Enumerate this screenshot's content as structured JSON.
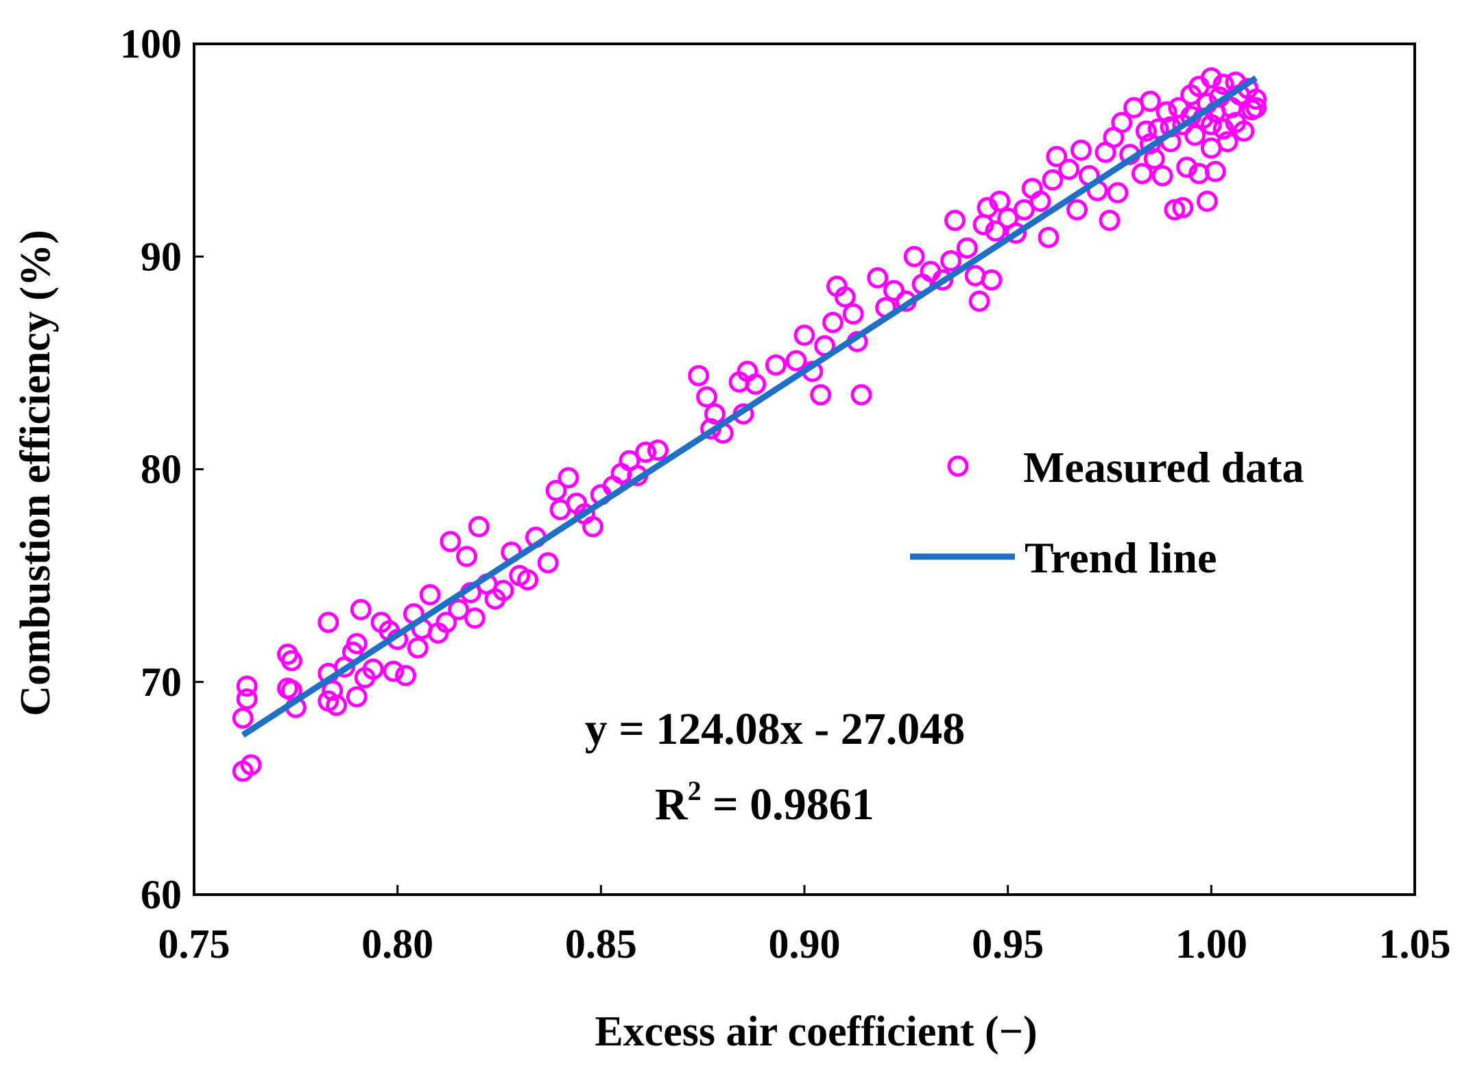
{
  "colors": {
    "points": "#ff00ff",
    "trend": "#1f6fc5",
    "axis": "#000000"
  },
  "chart_data": {
    "type": "scatter",
    "title": "",
    "xlabel": "Excess air coefficient (−)",
    "ylabel": "Combustion efficiency (%)",
    "xlim": [
      0.75,
      1.05
    ],
    "ylim": [
      60,
      100
    ],
    "x_ticks": [
      "0.75",
      "0.80",
      "0.85",
      "0.90",
      "0.95",
      "1.00",
      "1.05"
    ],
    "y_ticks": [
      "60",
      "70",
      "80",
      "90",
      "100"
    ],
    "grid": false,
    "legend_position": "right-middle",
    "legend": [
      "Measured data",
      "Trend line"
    ],
    "series": [
      {
        "name": "Measured data",
        "kind": "scatter",
        "points": [
          [
            0.762,
            65.8
          ],
          [
            0.764,
            66.1
          ],
          [
            0.762,
            68.3
          ],
          [
            0.763,
            69.2
          ],
          [
            0.763,
            69.8
          ],
          [
            0.773,
            71.3
          ],
          [
            0.774,
            71.0
          ],
          [
            0.773,
            69.7
          ],
          [
            0.774,
            69.6
          ],
          [
            0.775,
            68.8
          ],
          [
            0.783,
            72.8
          ],
          [
            0.783,
            70.4
          ],
          [
            0.783,
            69.1
          ],
          [
            0.784,
            69.6
          ],
          [
            0.785,
            68.9
          ],
          [
            0.787,
            70.7
          ],
          [
            0.789,
            71.4
          ],
          [
            0.79,
            71.8
          ],
          [
            0.79,
            69.3
          ],
          [
            0.791,
            73.4
          ],
          [
            0.792,
            70.2
          ],
          [
            0.794,
            70.6
          ],
          [
            0.796,
            72.8
          ],
          [
            0.798,
            72.4
          ],
          [
            0.799,
            70.5
          ],
          [
            0.8,
            72.0
          ],
          [
            0.802,
            70.3
          ],
          [
            0.804,
            73.2
          ],
          [
            0.805,
            71.6
          ],
          [
            0.806,
            72.5
          ],
          [
            0.808,
            74.1
          ],
          [
            0.81,
            72.3
          ],
          [
            0.812,
            72.8
          ],
          [
            0.813,
            76.6
          ],
          [
            0.815,
            73.4
          ],
          [
            0.817,
            75.9
          ],
          [
            0.818,
            74.2
          ],
          [
            0.819,
            73.0
          ],
          [
            0.82,
            77.3
          ],
          [
            0.822,
            74.6
          ],
          [
            0.824,
            73.9
          ],
          [
            0.826,
            74.3
          ],
          [
            0.828,
            76.1
          ],
          [
            0.83,
            75.0
          ],
          [
            0.832,
            74.8
          ],
          [
            0.834,
            76.8
          ],
          [
            0.837,
            75.6
          ],
          [
            0.839,
            79.0
          ],
          [
            0.84,
            78.1
          ],
          [
            0.842,
            79.6
          ],
          [
            0.844,
            78.4
          ],
          [
            0.846,
            77.9
          ],
          [
            0.848,
            77.3
          ],
          [
            0.85,
            78.8
          ],
          [
            0.853,
            79.2
          ],
          [
            0.855,
            79.8
          ],
          [
            0.857,
            80.4
          ],
          [
            0.859,
            79.7
          ],
          [
            0.861,
            80.8
          ],
          [
            0.864,
            80.9
          ],
          [
            0.874,
            84.4
          ],
          [
            0.876,
            83.4
          ],
          [
            0.877,
            81.9
          ],
          [
            0.878,
            82.6
          ],
          [
            0.88,
            81.7
          ],
          [
            0.884,
            84.1
          ],
          [
            0.885,
            82.6
          ],
          [
            0.886,
            84.6
          ],
          [
            0.888,
            84.0
          ],
          [
            0.893,
            84.9
          ],
          [
            0.898,
            85.1
          ],
          [
            0.9,
            86.3
          ],
          [
            0.902,
            84.6
          ],
          [
            0.904,
            83.5
          ],
          [
            0.905,
            85.8
          ],
          [
            0.907,
            86.9
          ],
          [
            0.908,
            88.6
          ],
          [
            0.91,
            88.1
          ],
          [
            0.912,
            87.3
          ],
          [
            0.913,
            86.0
          ],
          [
            0.914,
            83.5
          ],
          [
            0.918,
            89.0
          ],
          [
            0.92,
            87.6
          ],
          [
            0.922,
            88.4
          ],
          [
            0.925,
            87.9
          ],
          [
            0.927,
            90.0
          ],
          [
            0.929,
            88.7
          ],
          [
            0.931,
            89.3
          ],
          [
            0.934,
            88.9
          ],
          [
            0.936,
            89.8
          ],
          [
            0.937,
            91.7
          ],
          [
            0.94,
            90.4
          ],
          [
            0.942,
            89.1
          ],
          [
            0.943,
            87.9
          ],
          [
            0.944,
            91.5
          ],
          [
            0.945,
            92.3
          ],
          [
            0.946,
            88.9
          ],
          [
            0.947,
            91.2
          ],
          [
            0.948,
            92.6
          ],
          [
            0.95,
            91.8
          ],
          [
            0.952,
            91.1
          ],
          [
            0.954,
            92.2
          ],
          [
            0.956,
            93.2
          ],
          [
            0.958,
            92.6
          ],
          [
            0.96,
            90.9
          ],
          [
            0.961,
            93.6
          ],
          [
            0.962,
            94.7
          ],
          [
            0.965,
            94.1
          ],
          [
            0.967,
            92.2
          ],
          [
            0.968,
            95.0
          ],
          [
            0.97,
            93.8
          ],
          [
            0.972,
            93.1
          ],
          [
            0.974,
            94.9
          ],
          [
            0.975,
            91.7
          ],
          [
            0.976,
            95.6
          ],
          [
            0.977,
            93.0
          ],
          [
            0.978,
            96.3
          ],
          [
            0.98,
            94.8
          ],
          [
            0.981,
            97.0
          ],
          [
            0.983,
            93.9
          ],
          [
            0.984,
            95.9
          ],
          [
            0.985,
            97.3
          ],
          [
            0.986,
            94.6
          ],
          [
            0.987,
            96.0
          ],
          [
            0.988,
            93.8
          ],
          [
            0.989,
            96.8
          ],
          [
            0.99,
            95.4
          ],
          [
            0.991,
            92.2
          ],
          [
            0.992,
            97.0
          ],
          [
            0.993,
            92.3
          ],
          [
            0.993,
            96.2
          ],
          [
            0.994,
            94.2
          ],
          [
            0.995,
            97.6
          ],
          [
            0.996,
            95.7
          ],
          [
            0.997,
            98.0
          ],
          [
            0.997,
            93.9
          ],
          [
            0.998,
            96.5
          ],
          [
            0.999,
            92.6
          ],
          [
            0.999,
            97.2
          ],
          [
            1.0,
            98.4
          ],
          [
            1.0,
            95.1
          ],
          [
            1.001,
            96.8
          ],
          [
            1.001,
            94.0
          ],
          [
            1.002,
            97.5
          ],
          [
            1.003,
            96.0
          ],
          [
            1.003,
            98.1
          ],
          [
            1.004,
            95.4
          ],
          [
            1.005,
            97.0
          ],
          [
            1.006,
            98.2
          ],
          [
            1.006,
            96.3
          ],
          [
            1.007,
            97.6
          ],
          [
            1.008,
            95.9
          ],
          [
            1.009,
            97.9
          ],
          [
            1.01,
            96.9
          ],
          [
            1.011,
            97.4
          ],
          [
            1.011,
            97.0
          ],
          [
            1.0,
            96.2
          ],
          [
            0.995,
            96.6
          ],
          [
            0.99,
            96.1
          ],
          [
            0.985,
            95.3
          ]
        ]
      },
      {
        "name": "Trend line",
        "kind": "line",
        "slope": 124.08,
        "intercept": -27.048,
        "x_range": [
          0.762,
          1.011
        ]
      }
    ],
    "annotations": {
      "equation": "y = 124.08x - 27.048",
      "r_squared_prefix": "R",
      "r_squared_exponent": "2",
      "r_squared_value": " = 0.9861"
    }
  }
}
